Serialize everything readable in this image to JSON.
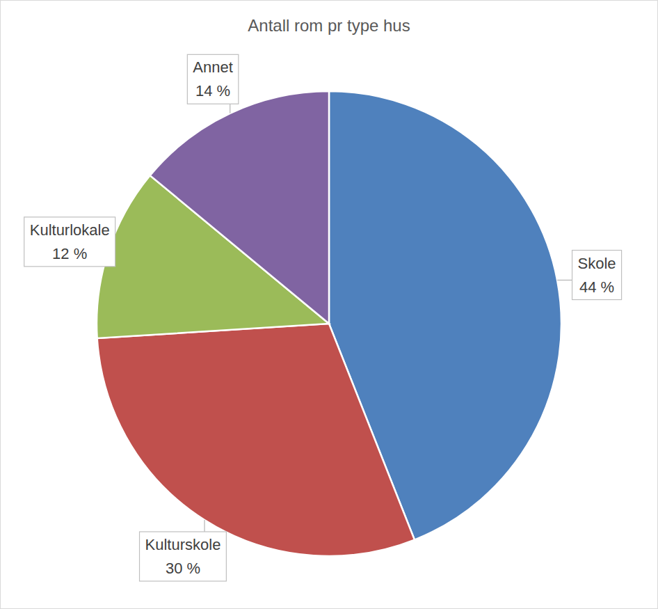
{
  "chart_data": {
    "type": "pie",
    "title": "Antall rom pr type hus",
    "categories": [
      "Skole",
      "Kulturskole",
      "Kulturlokale",
      "Annet"
    ],
    "values": [
      44,
      30,
      12,
      14
    ],
    "value_labels": [
      "44 %",
      "30 %",
      "12 %",
      "14 %"
    ],
    "colors": [
      "#4f81bd",
      "#c0504d",
      "#9bbb59",
      "#8064a2"
    ],
    "data_labels": true
  }
}
